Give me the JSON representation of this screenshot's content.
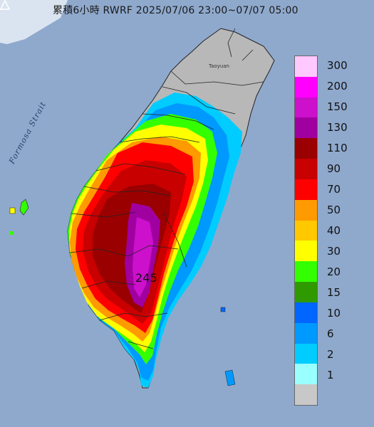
{
  "title": "累積6小時 RWRF 2025/07/06 23:00~07/07 05:00",
  "strait_label": "Formosa Strait",
  "city_label": "Taoyuan",
  "max_value": "245",
  "legend": {
    "items": [
      {
        "label": "300",
        "color": "#ffc8ff"
      },
      {
        "label": "200",
        "color": "#ff00ff"
      },
      {
        "label": "150",
        "color": "#cc10cc"
      },
      {
        "label": "130",
        "color": "#a000a0"
      },
      {
        "label": "110",
        "color": "#9a0000"
      },
      {
        "label": "90",
        "color": "#c80000"
      },
      {
        "label": "70",
        "color": "#ff0000"
      },
      {
        "label": "50",
        "color": "#ff9a00"
      },
      {
        "label": "40",
        "color": "#ffc800"
      },
      {
        "label": "30",
        "color": "#ffff00"
      },
      {
        "label": "20",
        "color": "#33ff00"
      },
      {
        "label": "15",
        "color": "#2f9a00"
      },
      {
        "label": "10",
        "color": "#0066ff"
      },
      {
        "label": "6",
        "color": "#0099ff"
      },
      {
        "label": "2",
        "color": "#00ccff"
      },
      {
        "label": "1",
        "color": "#99ffff"
      },
      {
        "label": "",
        "color": "#c8c8c8"
      }
    ]
  }
}
